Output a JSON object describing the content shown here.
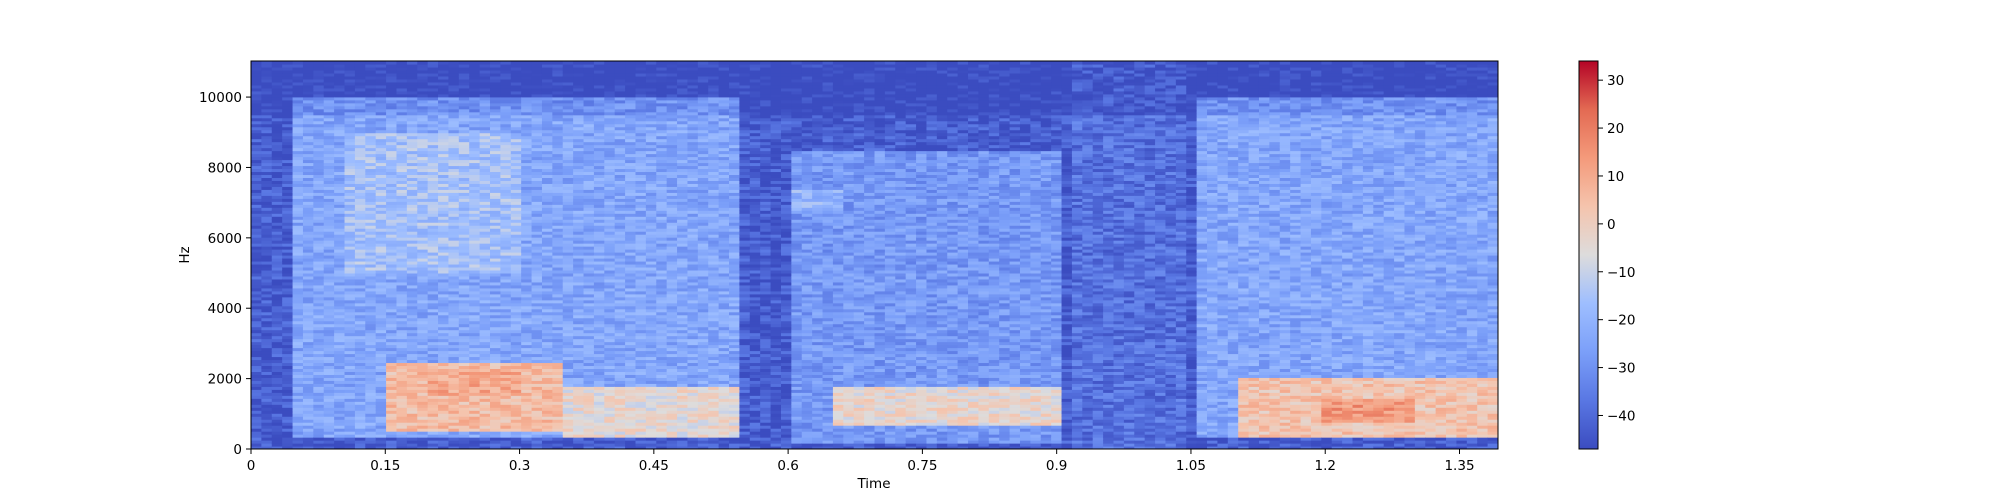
{
  "chart_data": {
    "type": "heatmap",
    "title": "",
    "xlabel": "Time",
    "ylabel": "Hz",
    "xlim": [
      0,
      1.393
    ],
    "ylim": [
      0,
      11025
    ],
    "x_ticks": [
      {
        "value": 0,
        "label": "0"
      },
      {
        "value": 0.15,
        "label": "0.15"
      },
      {
        "value": 0.3,
        "label": "0.3"
      },
      {
        "value": 0.45,
        "label": "0.45"
      },
      {
        "value": 0.6,
        "label": "0.6"
      },
      {
        "value": 0.75,
        "label": "0.75"
      },
      {
        "value": 0.9,
        "label": "0.9"
      },
      {
        "value": 1.05,
        "label": "1.05"
      },
      {
        "value": 1.2,
        "label": "1.2"
      },
      {
        "value": 1.35,
        "label": "1.35"
      }
    ],
    "y_ticks": [
      {
        "value": 0,
        "label": "0"
      },
      {
        "value": 2000,
        "label": "2000"
      },
      {
        "value": 4000,
        "label": "4000"
      },
      {
        "value": 6000,
        "label": "6000"
      },
      {
        "value": 8000,
        "label": "8000"
      },
      {
        "value": 10000,
        "label": "10000"
      }
    ],
    "colorbar": {
      "colormap": "coolwarm",
      "range": [
        -47,
        34
      ],
      "ticks": [
        {
          "value": 30,
          "label": "30"
        },
        {
          "value": 20,
          "label": "20"
        },
        {
          "value": 10,
          "label": "10"
        },
        {
          "value": 0,
          "label": "0"
        },
        {
          "value": -10,
          "label": "−10"
        },
        {
          "value": -20,
          "label": "−20"
        },
        {
          "value": -30,
          "label": "−30"
        },
        {
          "value": -40,
          "label": "−40"
        }
      ]
    },
    "energy_regions": [
      {
        "t": [
          0.05,
          0.55
        ],
        "f": [
          300,
          10000
        ],
        "db": -24
      },
      {
        "t": [
          0.1,
          0.3
        ],
        "f": [
          5000,
          9000
        ],
        "db": -16
      },
      {
        "t": [
          0.15,
          0.35
        ],
        "f": [
          500,
          2500
        ],
        "db": 5
      },
      {
        "t": [
          0.2,
          0.3
        ],
        "f": [
          1500,
          2300
        ],
        "db": 10
      },
      {
        "t": [
          0.35,
          0.55
        ],
        "f": [
          300,
          1800
        ],
        "db": -4
      },
      {
        "t": [
          0.6,
          0.9
        ],
        "f": [
          200,
          8500
        ],
        "db": -28
      },
      {
        "t": [
          0.6,
          0.66
        ],
        "f": [
          6800,
          7400
        ],
        "db": -20
      },
      {
        "t": [
          0.65,
          0.9
        ],
        "f": [
          700,
          1800
        ],
        "db": -3
      },
      {
        "t": [
          0.92,
          1.05
        ],
        "f": [
          0,
          11025
        ],
        "db": -38
      },
      {
        "t": [
          1.06,
          1.39
        ],
        "f": [
          300,
          10000
        ],
        "db": -24
      },
      {
        "t": [
          1.1,
          1.4
        ],
        "f": [
          300,
          2000
        ],
        "db": 3
      },
      {
        "t": [
          1.2,
          1.3
        ],
        "f": [
          800,
          1400
        ],
        "db": 14
      }
    ]
  }
}
